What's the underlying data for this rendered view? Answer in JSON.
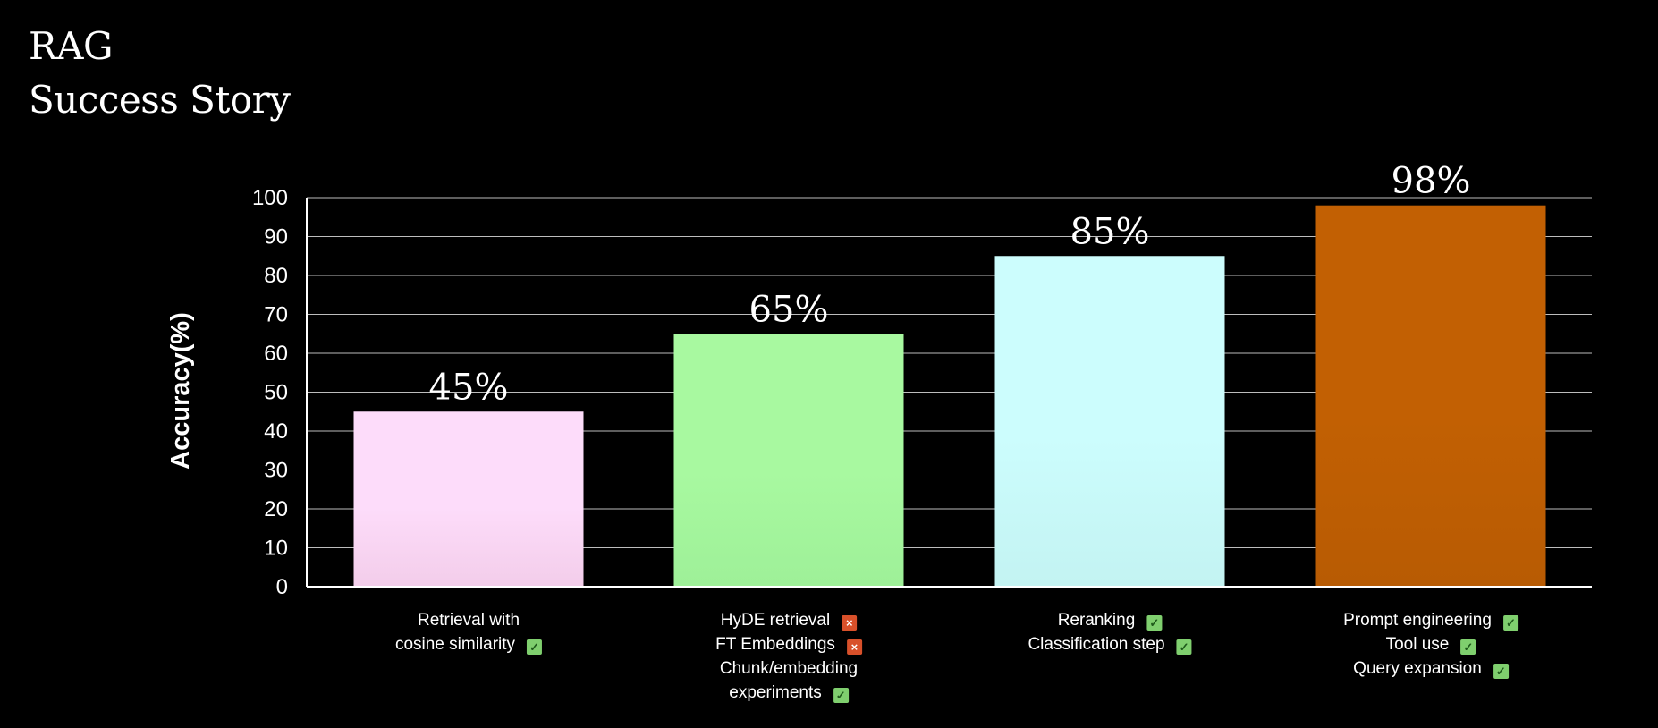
{
  "title": {
    "line1": "RAG",
    "line2": "Success Story"
  },
  "chart_data": {
    "type": "bar",
    "ylabel": "Accuracy(%)",
    "xlabel": "",
    "ylim": [
      0,
      100
    ],
    "yticks": [
      0,
      10,
      20,
      30,
      40,
      50,
      60,
      70,
      80,
      90,
      100
    ],
    "grid": true,
    "categories": [
      "Retrieval with cosine similarity",
      "HyDE retrieval / FT Embeddings / Chunk/embedding experiments",
      "Reranking / Classification step",
      "Prompt engineering / Tool use / Query expansion"
    ],
    "values": [
      45,
      65,
      85,
      98
    ],
    "data_labels": [
      "45%",
      "65%",
      "85%",
      "98%"
    ],
    "bar_colors": [
      "#fddcfa",
      "#a8f9a0",
      "#ccfdfd",
      "#c26003"
    ],
    "bar_colors_bottom": [
      "#f3cdea",
      "#9ef098",
      "#c3f3f2",
      "#b85b03"
    ],
    "colors": {
      "background": "#000000",
      "grid": "#bdbdbd",
      "axis": "#ffffff",
      "text": "#ffffff",
      "check": "#7fcf6e",
      "cross": "#d8502a"
    }
  },
  "notes": [
    {
      "lines": [
        {
          "text": "Retrieval with",
          "mark": ""
        },
        {
          "text": "cosine similarity",
          "mark": "check"
        }
      ]
    },
    {
      "lines": [
        {
          "text": "HyDE retrieval",
          "mark": "cross"
        },
        {
          "text": "FT Embeddings",
          "mark": "cross"
        },
        {
          "text": "Chunk/embedding",
          "mark": ""
        },
        {
          "text": "experiments",
          "mark": "check"
        }
      ]
    },
    {
      "lines": [
        {
          "text": "Reranking",
          "mark": "check"
        },
        {
          "text": "Classification step",
          "mark": "check"
        }
      ]
    },
    {
      "lines": [
        {
          "text": "Prompt engineering",
          "mark": "check"
        },
        {
          "text": "Tool use",
          "mark": "check"
        },
        {
          "text": "Query expansion",
          "mark": "check"
        }
      ]
    }
  ],
  "icons": {
    "check": "check-icon",
    "cross": "cross-icon"
  }
}
